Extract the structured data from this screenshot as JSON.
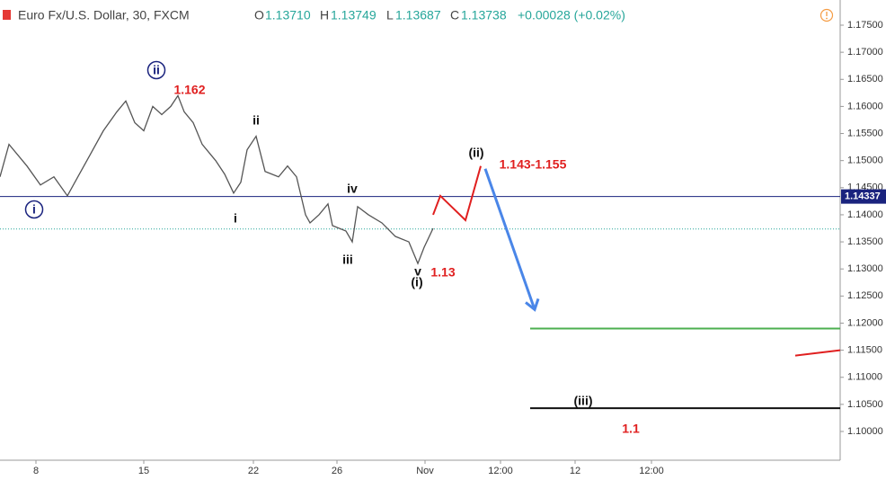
{
  "chart_data": {
    "type": "line",
    "title": "Euro Fx/U.S. Dollar, 30, FXCM",
    "ohlc": {
      "o_label": "O",
      "open": "1.13710",
      "h_label": "H",
      "high": "1.13749",
      "l_label": "L",
      "low": "1.13687",
      "c_label": "C",
      "close": 1.13738,
      "change": "+0.00028 (+0.02%)"
    },
    "xlim": [
      0,
      93.5
    ],
    "ylim": [
      1.0985,
      1.177
    ],
    "xticks": [
      {
        "value": 4.0,
        "label": "8"
      },
      {
        "value": 16.0,
        "label": "15"
      },
      {
        "value": 28.2,
        "label": "22"
      },
      {
        "value": 37.5,
        "label": "26"
      },
      {
        "value": 47.3,
        "label": "Nov"
      },
      {
        "value": 55.7,
        "label": "12:00"
      },
      {
        "value": 64.0,
        "label": "12"
      },
      {
        "value": 72.5,
        "label": "12:00"
      }
    ],
    "yticks": [
      {
        "value": 1.1,
        "label": "1.10000"
      },
      {
        "value": 1.105,
        "label": "1.10500"
      },
      {
        "value": 1.11,
        "label": "1.11000"
      },
      {
        "value": 1.115,
        "label": "1.11500"
      },
      {
        "value": 1.12,
        "label": "1.12000"
      },
      {
        "value": 1.125,
        "label": "1.12500"
      },
      {
        "value": 1.13,
        "label": "1.13000"
      },
      {
        "value": 1.135,
        "label": "1.13500"
      },
      {
        "value": 1.14,
        "label": "1.14000"
      },
      {
        "value": 1.145,
        "label": "1.14500"
      },
      {
        "value": 1.15,
        "label": "1.15000"
      },
      {
        "value": 1.155,
        "label": "1.15500"
      },
      {
        "value": 1.16,
        "label": "1.16000"
      },
      {
        "value": 1.165,
        "label": "1.16500"
      },
      {
        "value": 1.17,
        "label": "1.17000"
      },
      {
        "value": 1.175,
        "label": "1.17500"
      }
    ],
    "series": [
      {
        "color": "#555555",
        "x": [
          0,
          1,
          3,
          4.5,
          6,
          7.5,
          9,
          10,
          11.5,
          13,
          14,
          15,
          16,
          17,
          18,
          19,
          19.8,
          20.5,
          21.5,
          22.5,
          24,
          25,
          26,
          26.8,
          27.5,
          28.5,
          29.5,
          31,
          32,
          33,
          34,
          34.5,
          35.5,
          36.5,
          37,
          38.5,
          39.2,
          39.8,
          41,
          42.5,
          44,
          45.5,
          46.5,
          47.2,
          48.2
        ],
        "values": [
          1.147,
          1.153,
          1.149,
          1.1455,
          1.147,
          1.1435,
          1.148,
          1.151,
          1.1555,
          1.159,
          1.161,
          1.157,
          1.1555,
          1.16,
          1.1585,
          1.16,
          1.162,
          1.159,
          1.157,
          1.153,
          1.15,
          1.1475,
          1.144,
          1.146,
          1.152,
          1.1545,
          1.148,
          1.147,
          1.149,
          1.147,
          1.14,
          1.1385,
          1.14,
          1.142,
          1.138,
          1.137,
          1.135,
          1.1415,
          1.14,
          1.1385,
          1.136,
          1.135,
          1.131,
          1.134,
          1.1375
        ]
      }
    ],
    "level": 1.14337,
    "projections": [
      {
        "color": "#e01f1f",
        "x": [
          48.2,
          49,
          51.8,
          53.5
        ],
        "values": [
          1.14,
          1.1435,
          1.139,
          1.149
        ]
      },
      {
        "color": "#4a86e8",
        "x": [
          54,
          59.5
        ],
        "values": [
          1.1485,
          1.1225
        ]
      },
      {
        "color": "#4caf50",
        "x": [
          59,
          93.5
        ],
        "values": [
          1.119,
          1.119
        ]
      },
      {
        "color": "#111111",
        "x": [
          59,
          93.5
        ],
        "values": [
          1.1043,
          1.1043
        ]
      },
      {
        "color": "#e01f1f",
        "x": [
          88.5,
          93.5
        ],
        "values": [
          1.114,
          1.115
        ]
      }
    ],
    "annotations": [
      "ii",
      "1.162",
      "ii",
      "i",
      "i",
      "iv",
      "iii",
      "v",
      "(i)",
      "1.13",
      "(ii)",
      "1.143-1.155",
      "(iii)",
      "1.1"
    ]
  }
}
